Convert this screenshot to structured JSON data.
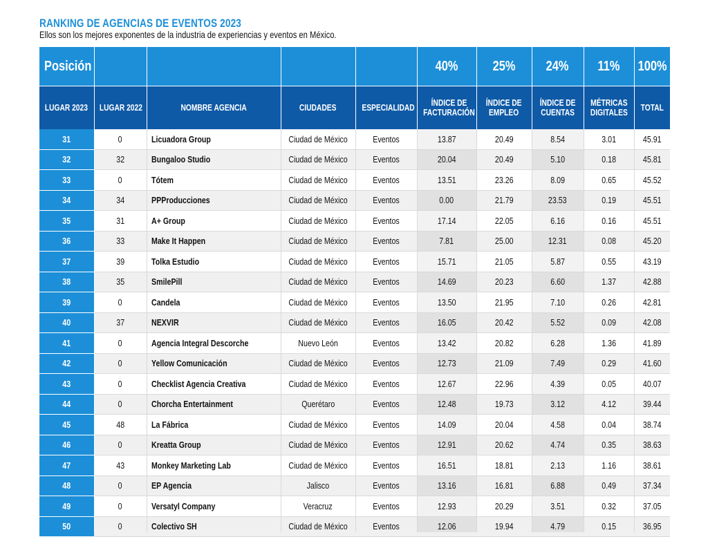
{
  "title": "RANKING DE AGENCIAS DE EVENTOS 2023",
  "subtitle": "Ellos son los mejores exponentes de la industria de experiencias y eventos en México.",
  "header_top": {
    "posicion": "Posición",
    "w1": "40%",
    "w2": "25%",
    "w3": "24%",
    "w4": "11%",
    "w5": "100%"
  },
  "columns": {
    "lugar2023": "LUGAR 2023",
    "lugar2022": "LUGAR 2022",
    "nombre": "NOMBRE AGENCIA",
    "ciudades": "CIUDADES",
    "especialidad": "ESPECIALIDAD",
    "fact1": "ÍNDICE DE",
    "fact2": "FACTURACIÓN",
    "emp1": "ÍNDICE DE",
    "emp2": "EMPLEO",
    "cue1": "ÍNDICE DE",
    "cue2": "CUENTAS",
    "met1": "MÉTRICAS",
    "met2": "DIGITALES",
    "total": "TOTAL"
  },
  "rows": [
    {
      "l2023": "31",
      "l2022": "0",
      "name": "Licuadora Group",
      "city": "Ciudad de México",
      "spec": "Eventos",
      "fact": "13.87",
      "emp": "20.49",
      "cue": "8.54",
      "met": "3.01",
      "total": "45.91"
    },
    {
      "l2023": "32",
      "l2022": "32",
      "name": "Bungaloo Studio",
      "city": "Ciudad de México",
      "spec": "Eventos",
      "fact": "20.04",
      "emp": "20.49",
      "cue": "5.10",
      "met": "0.18",
      "total": "45.81"
    },
    {
      "l2023": "33",
      "l2022": "0",
      "name": "Tótem",
      "city": "Ciudad de México",
      "spec": "Eventos",
      "fact": "13.51",
      "emp": "23.26",
      "cue": "8.09",
      "met": "0.65",
      "total": "45.52"
    },
    {
      "l2023": "34",
      "l2022": "34",
      "name": "PPProducciones",
      "city": "Ciudad de México",
      "spec": "Eventos",
      "fact": "0.00",
      "emp": "21.79",
      "cue": "23.53",
      "met": "0.19",
      "total": "45.51"
    },
    {
      "l2023": "35",
      "l2022": "31",
      "name": "A+ Group",
      "city": "Ciudad de México",
      "spec": "Eventos",
      "fact": "17.14",
      "emp": "22.05",
      "cue": "6.16",
      "met": "0.16",
      "total": "45.51"
    },
    {
      "l2023": "36",
      "l2022": "33",
      "name": "Make It Happen",
      "city": "Ciudad de México",
      "spec": "Eventos",
      "fact": "7.81",
      "emp": "25.00",
      "cue": "12.31",
      "met": "0.08",
      "total": "45.20"
    },
    {
      "l2023": "37",
      "l2022": "39",
      "name": "Tolka Estudio",
      "city": "Ciudad de México",
      "spec": "Eventos",
      "fact": "15.71",
      "emp": "21.05",
      "cue": "5.87",
      "met": "0.55",
      "total": "43.19"
    },
    {
      "l2023": "38",
      "l2022": "35",
      "name": "SmilePill",
      "city": "Ciudad de México",
      "spec": "Eventos",
      "fact": "14.69",
      "emp": "20.23",
      "cue": "6.60",
      "met": "1.37",
      "total": "42.88"
    },
    {
      "l2023": "39",
      "l2022": "0",
      "name": "Candela",
      "city": "Ciudad de México",
      "spec": "Eventos",
      "fact": "13.50",
      "emp": "21.95",
      "cue": "7.10",
      "met": "0.26",
      "total": "42.81"
    },
    {
      "l2023": "40",
      "l2022": "37",
      "name": "NEXVIR",
      "city": "Ciudad de México",
      "spec": "Eventos",
      "fact": "16.05",
      "emp": "20.42",
      "cue": "5.52",
      "met": "0.09",
      "total": "42.08"
    },
    {
      "l2023": "41",
      "l2022": "0",
      "name": "Agencia Integral Descorche",
      "city": "Nuevo León",
      "spec": "Eventos",
      "fact": "13.42",
      "emp": "20.82",
      "cue": "6.28",
      "met": "1.36",
      "total": "41.89"
    },
    {
      "l2023": "42",
      "l2022": "0",
      "name": "Yellow Comunicación",
      "city": "Ciudad de México",
      "spec": "Eventos",
      "fact": "12.73",
      "emp": "21.09",
      "cue": "7.49",
      "met": "0.29",
      "total": "41.60"
    },
    {
      "l2023": "43",
      "l2022": "0",
      "name": "Checklist Agencia Creativa",
      "city": "Ciudad de México",
      "spec": "Eventos",
      "fact": "12.67",
      "emp": "22.96",
      "cue": "4.39",
      "met": "0.05",
      "total": "40.07"
    },
    {
      "l2023": "44",
      "l2022": "0",
      "name": "Chorcha Entertainment",
      "city": "Querétaro",
      "spec": "Eventos",
      "fact": "12.48",
      "emp": "19.73",
      "cue": "3.12",
      "met": "4.12",
      "total": "39.44"
    },
    {
      "l2023": "45",
      "l2022": "48",
      "name": "La Fábrica",
      "city": "Ciudad de México",
      "spec": "Eventos",
      "fact": "14.09",
      "emp": "20.04",
      "cue": "4.58",
      "met": "0.04",
      "total": "38.74"
    },
    {
      "l2023": "46",
      "l2022": "0",
      "name": "Kreatta Group",
      "city": "Ciudad de México",
      "spec": "Eventos",
      "fact": "12.91",
      "emp": "20.62",
      "cue": "4.74",
      "met": "0.35",
      "total": "38.63"
    },
    {
      "l2023": "47",
      "l2022": "43",
      "name": "Monkey Marketing Lab",
      "city": "Ciudad de México",
      "spec": "Eventos",
      "fact": "16.51",
      "emp": "18.81",
      "cue": "2.13",
      "met": "1.16",
      "total": "38.61"
    },
    {
      "l2023": "48",
      "l2022": "0",
      "name": "EP Agencia",
      "city": "Jalisco",
      "spec": "Eventos",
      "fact": "13.16",
      "emp": "16.81",
      "cue": "6.88",
      "met": "0.49",
      "total": "37.34"
    },
    {
      "l2023": "49",
      "l2022": "0",
      "name": "Versatyl Company",
      "city": "Veracruz",
      "spec": "Eventos",
      "fact": "12.93",
      "emp": "20.29",
      "cue": "3.51",
      "met": "0.32",
      "total": "37.05"
    },
    {
      "l2023": "50",
      "l2022": "0",
      "name": "Colectivo SH",
      "city": "Ciudad de México",
      "spec": "Eventos",
      "fact": "12.06",
      "emp": "19.94",
      "cue": "4.79",
      "met": "0.15",
      "total": "36.95"
    }
  ]
}
